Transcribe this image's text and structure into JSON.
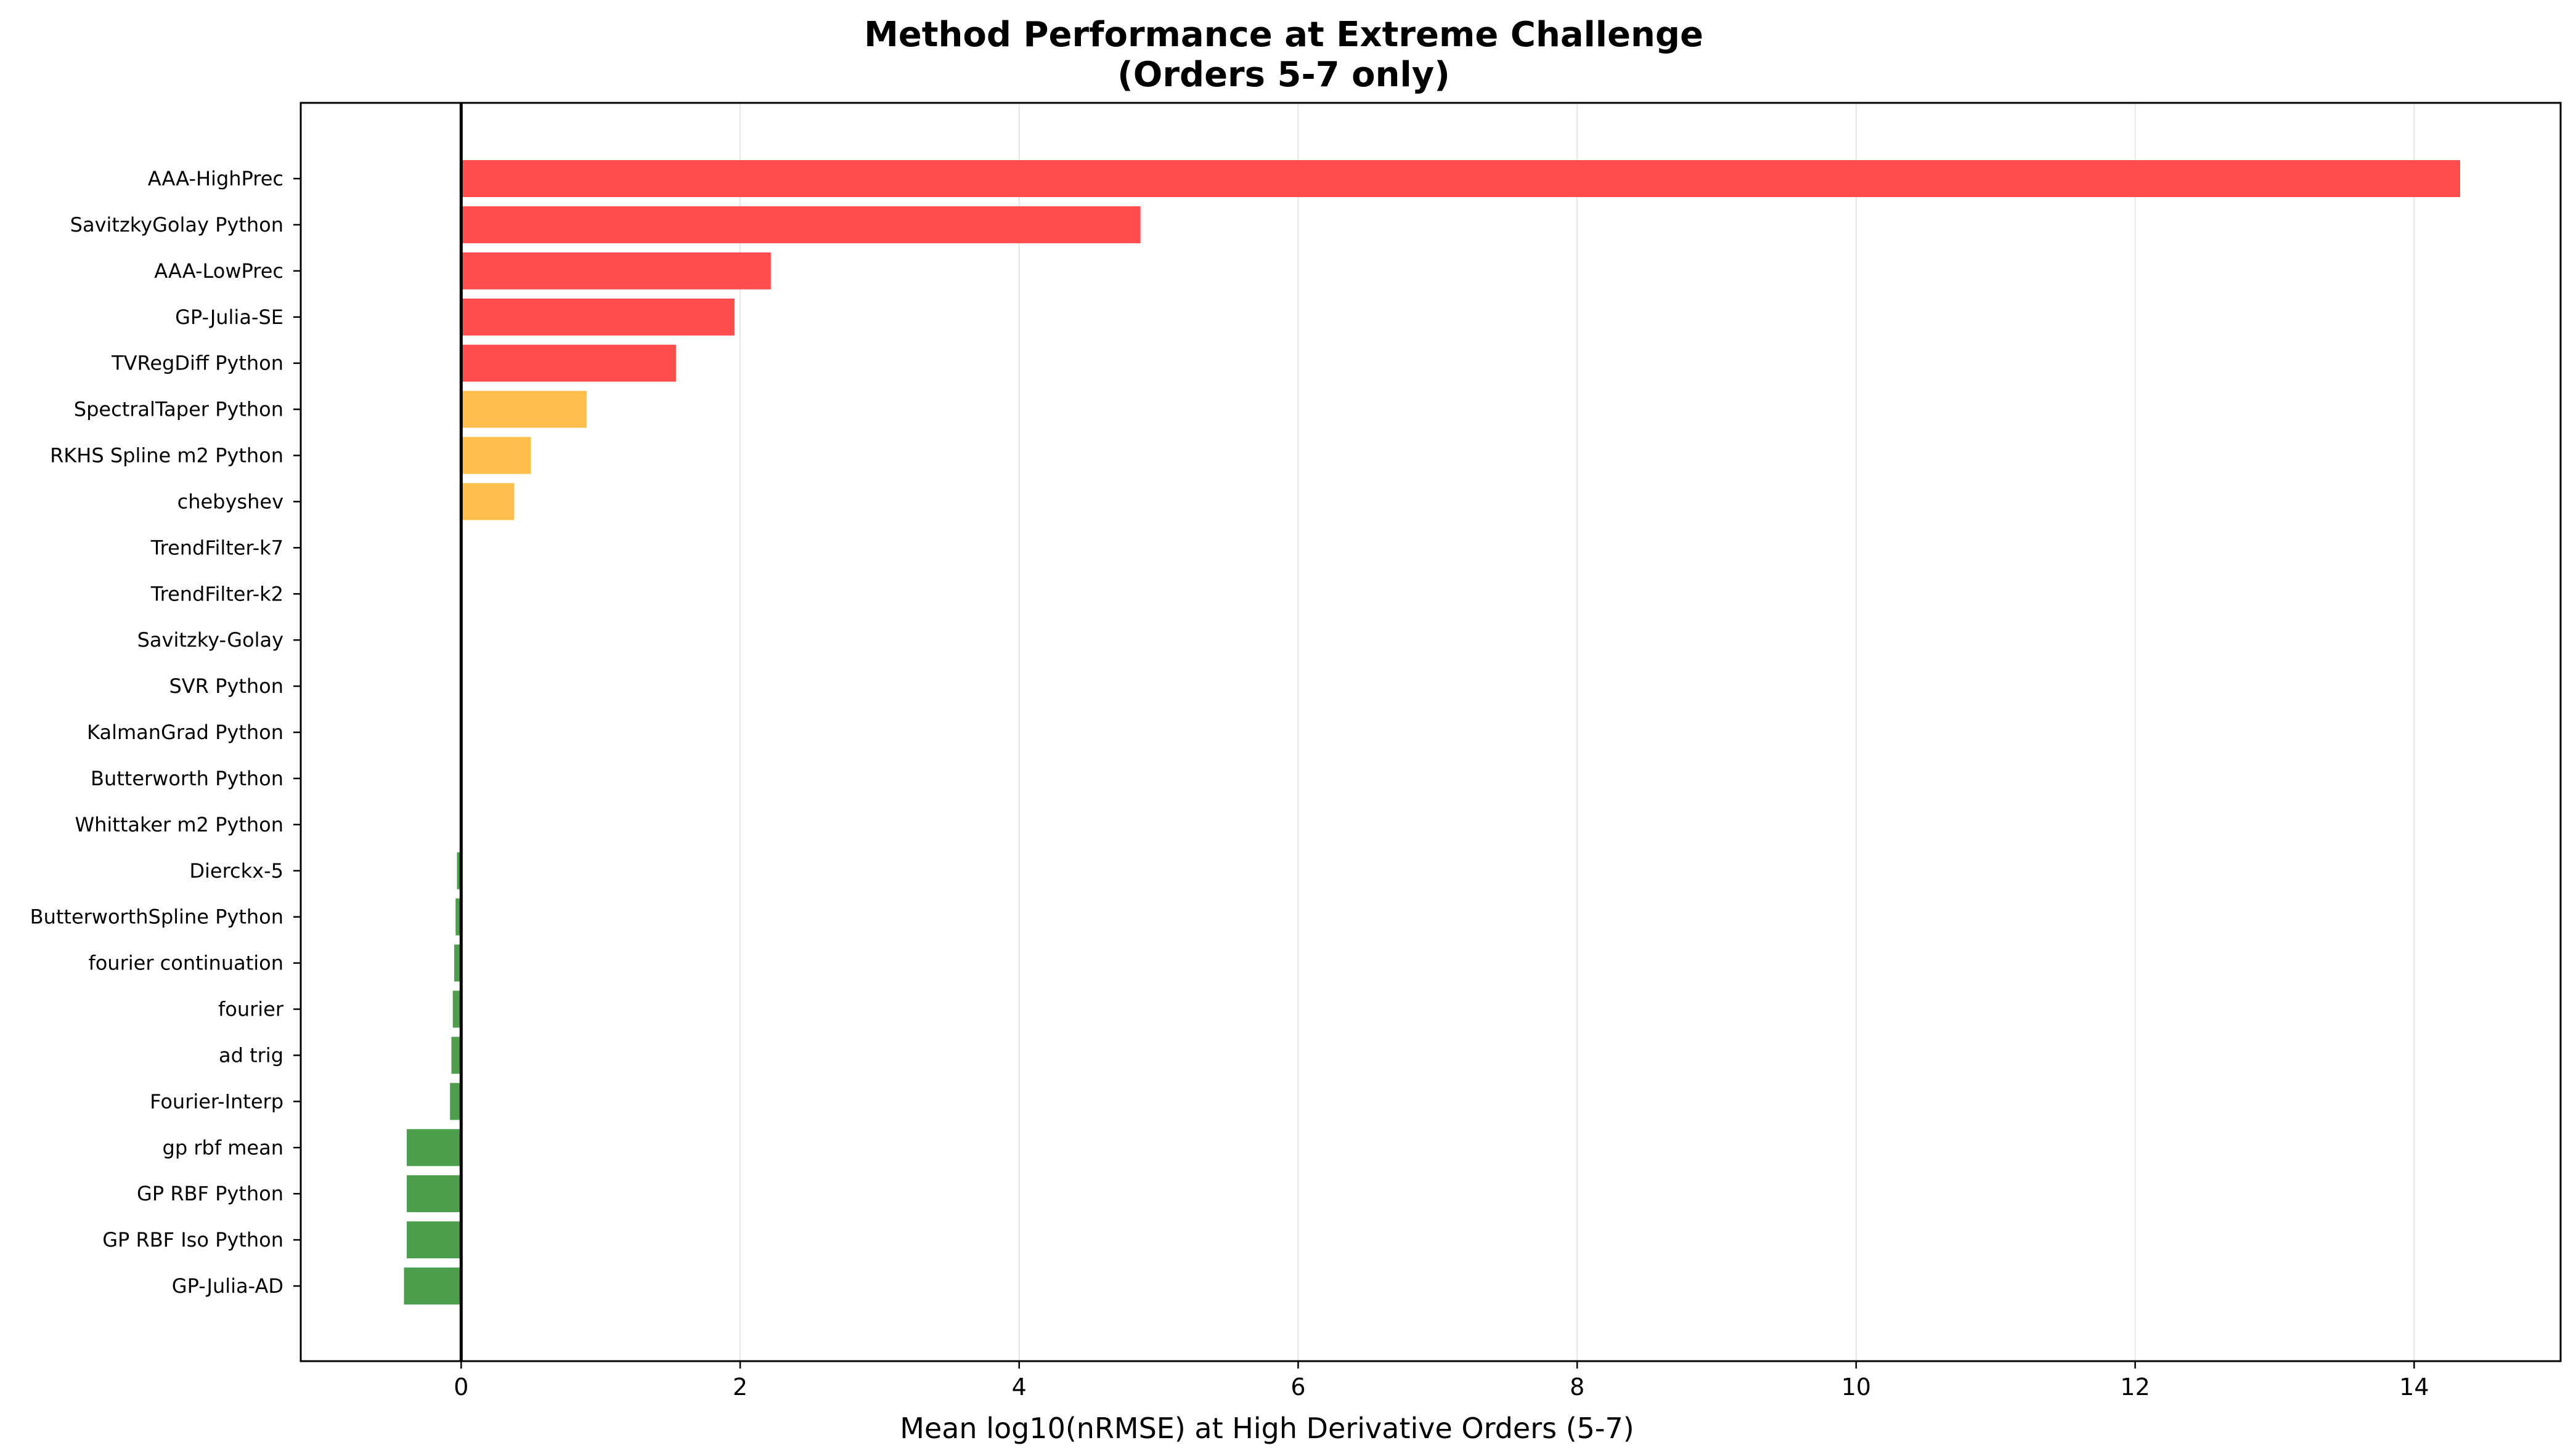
{
  "chart_data": {
    "type": "bar",
    "orientation": "horizontal",
    "title": "Method Performance at Extreme Challenge",
    "subtitle": "(Orders 5-7 only)",
    "xlabel": "Mean log10(nRMSE) at High Derivative Orders (5-7)",
    "ylabel": "",
    "xlim": [
      -1.15,
      15.05
    ],
    "x_ticks": [
      0,
      2,
      4,
      6,
      8,
      10,
      12,
      14
    ],
    "grid": "vertical",
    "legend": "none",
    "categories": [
      "AAA-HighPrec",
      "SavitzkyGolay Python",
      "AAA-LowPrec",
      "GP-Julia-SE",
      "TVRegDiff Python",
      "SpectralTaper Python",
      "RKHS Spline m2 Python",
      "chebyshev",
      "TrendFilter-k7",
      "TrendFilter-k2",
      "Savitzky-Golay",
      "SVR Python",
      "KalmanGrad Python",
      "Butterworth Python",
      "Whittaker m2 Python",
      "Dierckx-5",
      "ButterworthSpline Python",
      "fourier continuation",
      "fourier",
      "ad trig",
      "Fourier-Interp",
      "gp rbf mean",
      "GP RBF Python",
      "GP RBF Iso Python",
      "GP-Julia-AD"
    ],
    "values": [
      14.33,
      4.87,
      2.22,
      1.96,
      1.54,
      0.9,
      0.5,
      0.38,
      0.0,
      0.0,
      0.0,
      0.0,
      0.0,
      0.0,
      0.0,
      -0.03,
      -0.04,
      -0.05,
      -0.06,
      -0.07,
      -0.08,
      -0.39,
      -0.39,
      -0.39,
      -0.41
    ],
    "bar_colors": [
      "#ff4d4d",
      "#ff4d4d",
      "#ff4d4d",
      "#ff4d4d",
      "#ff4d4d",
      "#ffbf4d",
      "#ffbf4d",
      "#ffbf4d",
      "#4d9f4d",
      "#4d9f4d",
      "#4d9f4d",
      "#4d9f4d",
      "#4d9f4d",
      "#4d9f4d",
      "#4d9f4d",
      "#4d9f4d",
      "#4d9f4d",
      "#4d9f4d",
      "#4d9f4d",
      "#4d9f4d",
      "#4d9f4d",
      "#4d9f4d",
      "#4d9f4d",
      "#4d9f4d",
      "#4d9f4d"
    ],
    "colors": {
      "high": "#ff4d4d",
      "medium": "#ffbf4d",
      "low": "#4d9f4d",
      "zero_line": "#000000",
      "grid": "#e6e6e6"
    }
  }
}
